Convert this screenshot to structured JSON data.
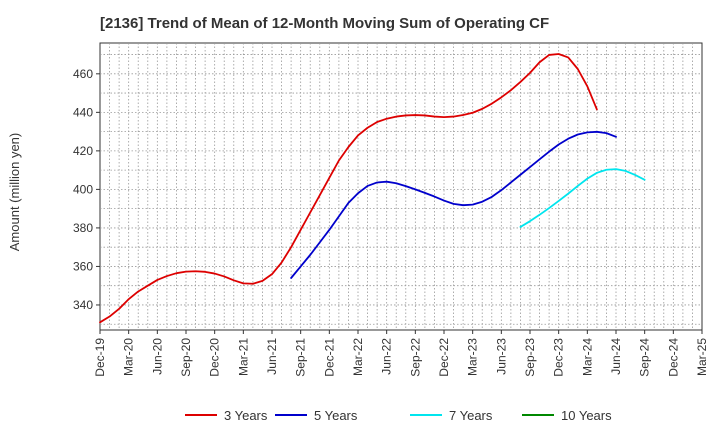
{
  "chart_data": {
    "type": "line",
    "title": "[2136]  Trend of Mean of 12-Month Moving Sum of Operating CF",
    "xlabel": "",
    "ylabel": "Amount (million yen)",
    "ylim": [
      327,
      476
    ],
    "yticks": [
      340,
      360,
      380,
      400,
      420,
      440,
      460
    ],
    "grid": true,
    "legend_position": "bottom",
    "x_ticks": [
      "Dec-19",
      "Mar-20",
      "Jun-20",
      "Sep-20",
      "Dec-20",
      "Mar-21",
      "Jun-21",
      "Sep-21",
      "Dec-21",
      "Mar-22",
      "Jun-22",
      "Sep-22",
      "Dec-22",
      "Mar-23",
      "Jun-23",
      "Sep-23",
      "Dec-23",
      "Mar-24",
      "Jun-24",
      "Sep-24",
      "Dec-24",
      "Mar-25"
    ],
    "x_months": [
      "Dec-19",
      "Jan-20",
      "Feb-20",
      "Mar-20",
      "Apr-20",
      "May-20",
      "Jun-20",
      "Jul-20",
      "Aug-20",
      "Sep-20",
      "Oct-20",
      "Nov-20",
      "Dec-20",
      "Jan-21",
      "Feb-21",
      "Mar-21",
      "Apr-21",
      "May-21",
      "Jun-21",
      "Jul-21",
      "Aug-21",
      "Sep-21",
      "Oct-21",
      "Nov-21",
      "Dec-21",
      "Jan-22",
      "Feb-22",
      "Mar-22",
      "Apr-22",
      "May-22",
      "Jun-22",
      "Jul-22",
      "Aug-22",
      "Sep-22",
      "Oct-22",
      "Nov-22",
      "Dec-22",
      "Jan-23",
      "Feb-23",
      "Mar-23",
      "Apr-23",
      "May-23",
      "Jun-23",
      "Jul-23",
      "Aug-23",
      "Sep-23",
      "Oct-23",
      "Nov-23",
      "Dec-23",
      "Jan-24",
      "Feb-24",
      "Mar-24",
      "Apr-24",
      "May-24",
      "Jun-24",
      "Jul-24",
      "Aug-24",
      "Sep-24",
      "Oct-24",
      "Nov-24",
      "Dec-24",
      "Jan-25",
      "Feb-25",
      "Mar-25"
    ],
    "series": [
      {
        "name": "3 Years",
        "color": "#dd0000",
        "start": "Dec-19",
        "values": [
          331,
          334,
          338,
          343,
          347,
          350,
          353,
          355,
          356.5,
          357.3,
          357.5,
          357.2,
          356.3,
          354.8,
          352.8,
          351.2,
          351,
          352.5,
          356,
          362,
          370,
          379,
          388,
          397,
          406,
          415,
          422,
          428,
          432,
          435,
          436.7,
          437.8,
          438.4,
          438.6,
          438.4,
          437.8,
          437.5,
          437.8,
          438.6,
          439.8,
          441.8,
          444.5,
          447.8,
          451.5,
          455.8,
          460.5,
          466,
          469.8,
          470.3,
          468.5,
          462.5,
          453.5,
          441.5
        ]
      },
      {
        "name": "5 Years",
        "color": "#0000cc",
        "start": "Aug-21",
        "values": [
          354,
          360,
          366,
          372.5,
          379,
          386,
          393,
          398,
          401.8,
          403.6,
          404,
          403.2,
          401.7,
          400,
          398.2,
          396.3,
          394.2,
          392.5,
          391.8,
          392.1,
          393.6,
          396.1,
          399.6,
          403.6,
          407.6,
          411.6,
          415.6,
          419.6,
          423.3,
          426.3,
          428.5,
          429.6,
          429.9,
          429.2,
          427.3
        ]
      },
      {
        "name": "7 Years",
        "color": "#00e5ee",
        "start": "Aug-23",
        "values": [
          380.5,
          383.5,
          386.8,
          390.3,
          394,
          397.8,
          401.8,
          405.6,
          408.6,
          410.2,
          410.5,
          409.6,
          407.5,
          405
        ]
      },
      {
        "name": "10 Years",
        "color": "#008800",
        "start": "Dec-19",
        "values": []
      }
    ]
  }
}
